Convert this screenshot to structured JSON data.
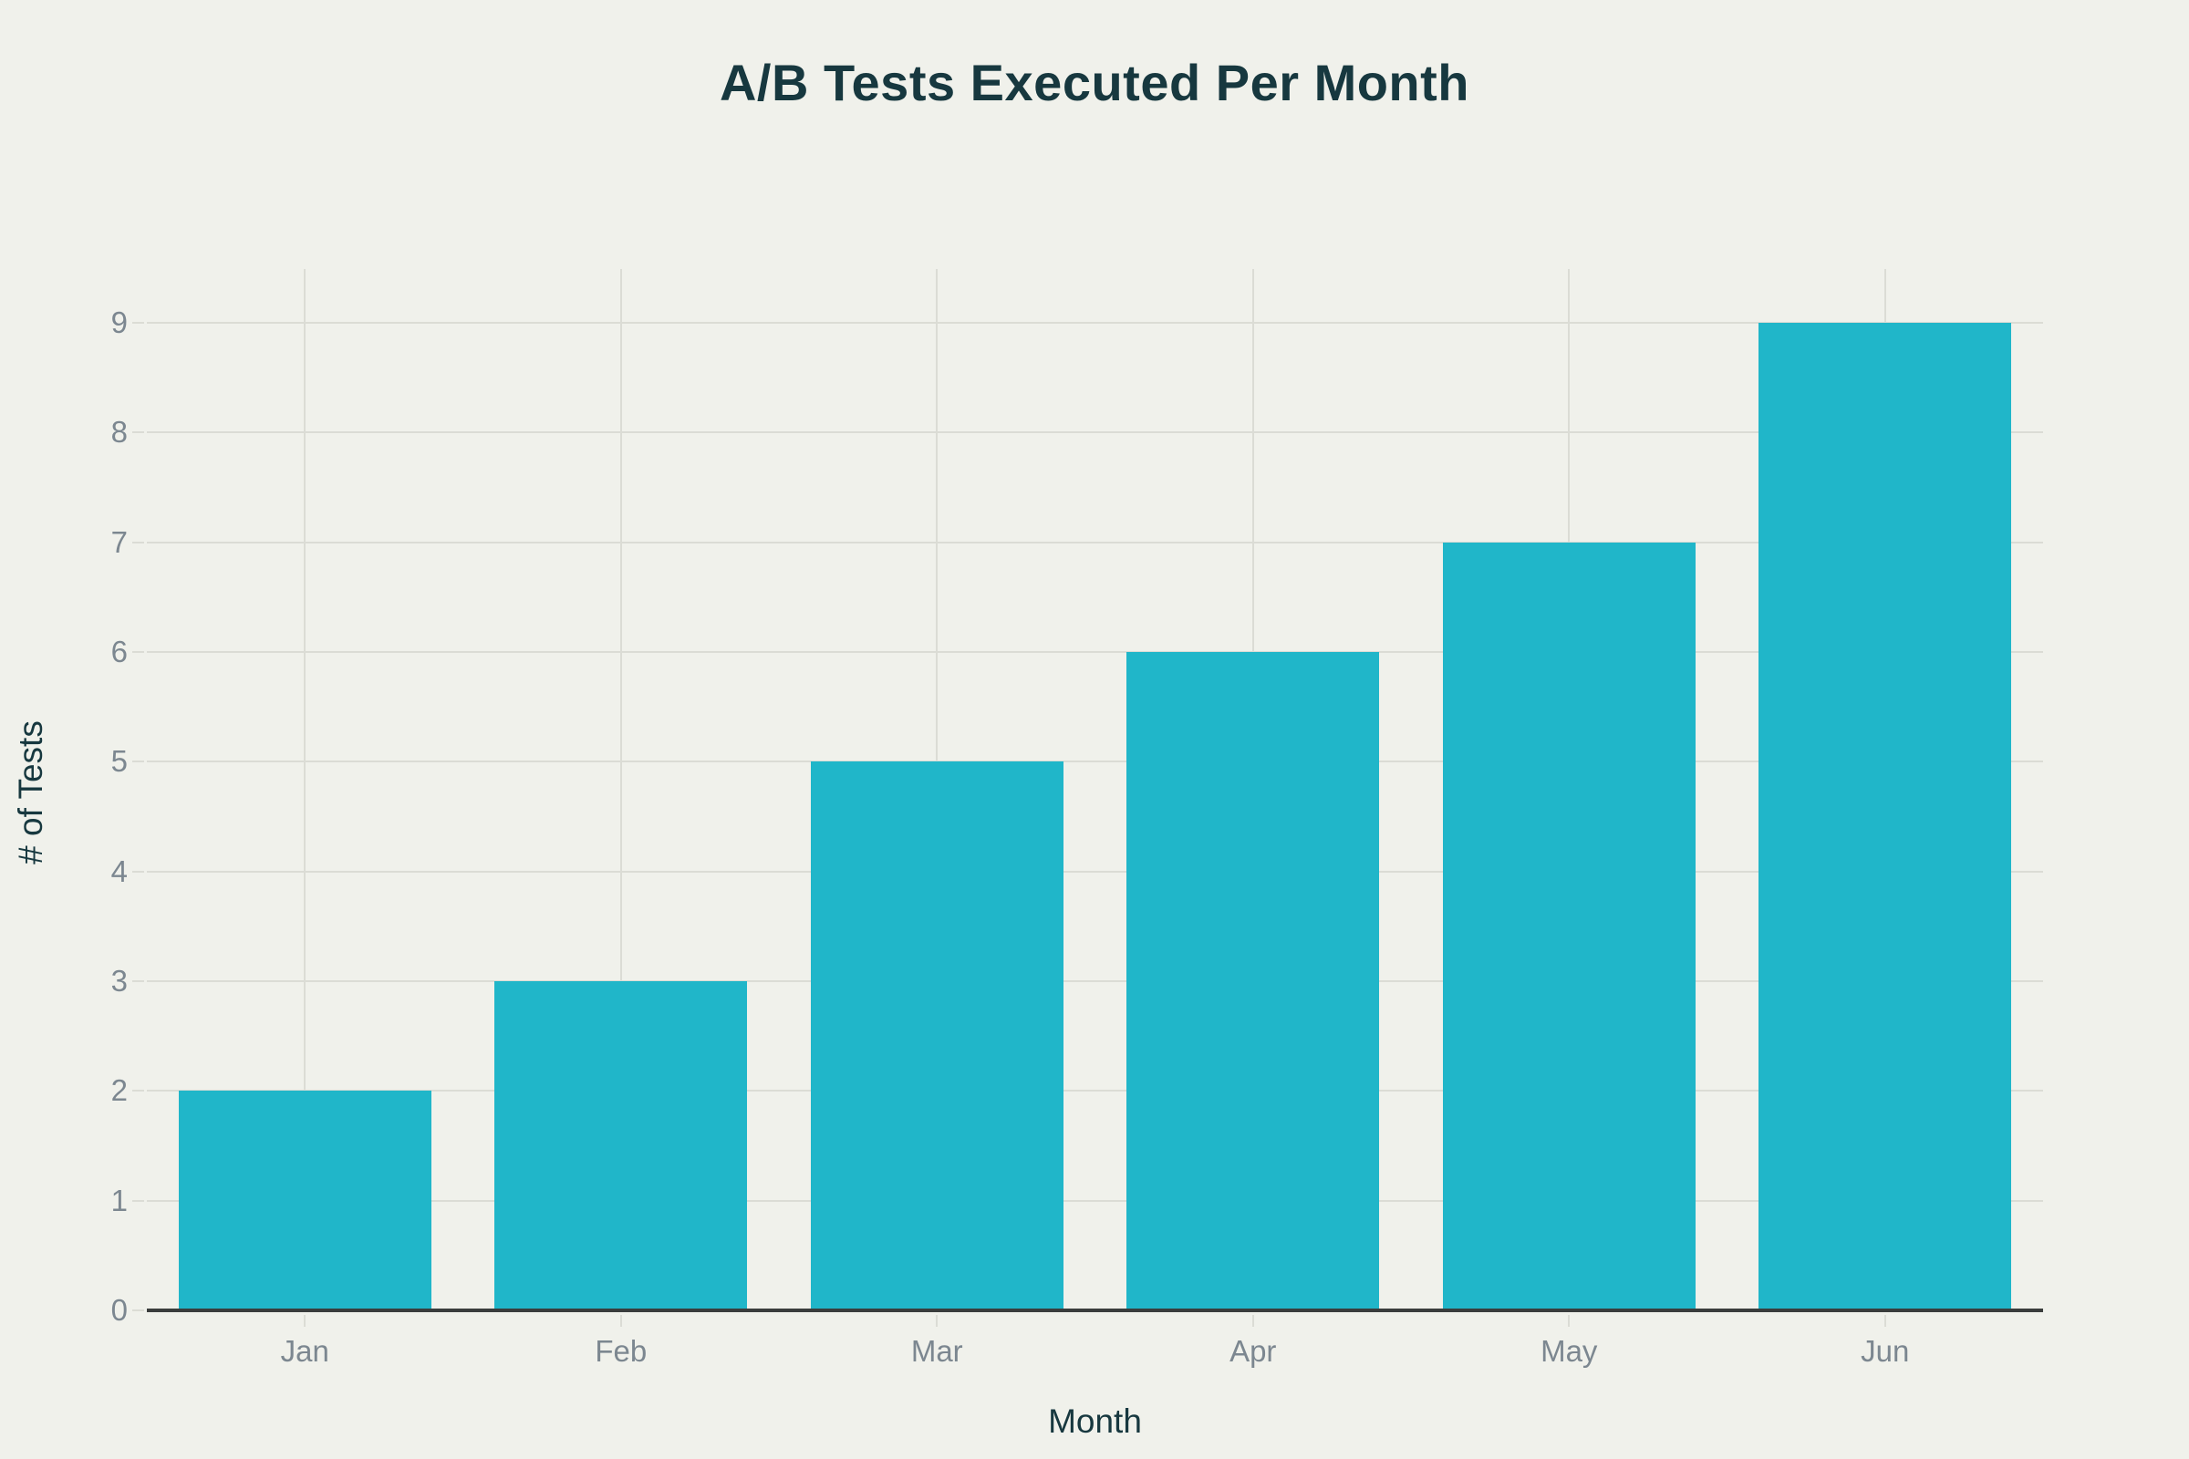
{
  "chart_data": {
    "type": "bar",
    "title": "A/B Tests Executed Per Month",
    "xlabel": "Month",
    "ylabel": "# of Tests",
    "categories": [
      "Jan",
      "Feb",
      "Mar",
      "Apr",
      "May",
      "Jun"
    ],
    "values": [
      2,
      3,
      5,
      6,
      7,
      9
    ],
    "ylim": [
      0,
      9.49
    ],
    "yticks": [
      0,
      1,
      2,
      3,
      4,
      5,
      6,
      7,
      8,
      9
    ],
    "grid": true,
    "legend": "none",
    "bar_width_fraction": 0.8,
    "colors": {
      "bar": "#20B6C9",
      "background": "#F0F1EB",
      "grid": "#DBDCD5",
      "axis_line": "#3A3D3C",
      "tick_label": "#7C8790",
      "title_text": "#17383F"
    }
  }
}
